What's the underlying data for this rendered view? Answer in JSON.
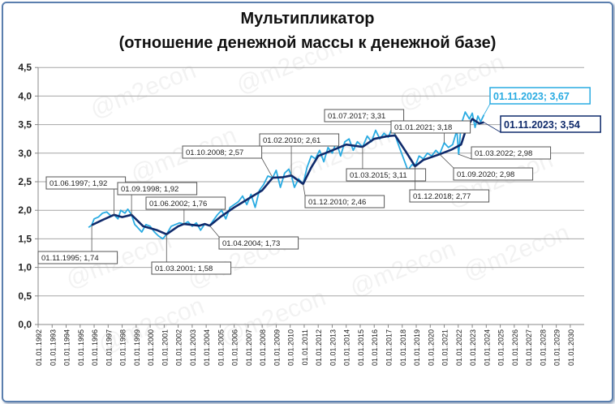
{
  "chart_data": {
    "type": "line",
    "title": "Мультипликатор",
    "subtitle": "(отношение денежной массы к денежной базе)",
    "watermark": "@m2econ",
    "ylim": [
      0,
      4.5
    ],
    "y_ticks": [
      "0,0",
      "0,5",
      "1,0",
      "1,5",
      "2,0",
      "2,5",
      "3,0",
      "3,5",
      "4,0",
      "4,5"
    ],
    "y_tick_values": [
      0,
      0.5,
      1,
      1.5,
      2,
      2.5,
      3,
      3.5,
      4,
      4.5
    ],
    "x_ticks": [
      "01.01.1992",
      "01.01.1993",
      "01.01.1994",
      "01.01.1995",
      "01.01.1996",
      "01.01.1997",
      "01.01.1998",
      "01.01.1999",
      "01.01.2000",
      "01.01.2001",
      "01.01.2002",
      "01.01.2003",
      "01.01.2004",
      "01.01.2005",
      "01.01.2006",
      "01.01.2007",
      "01.01.2008",
      "01.01.2009",
      "01.01.2010",
      "01.01.2011",
      "01.01.2012",
      "01.01.2013",
      "01.01.2014",
      "01.01.2015",
      "01.01.2016",
      "01.01.2017",
      "01.01.2018",
      "01.01.2019",
      "01.01.2020",
      "01.01.2021",
      "01.01.2022",
      "01.01.2023",
      "01.01.2024",
      "01.01.2025",
      "01.01.2026",
      "01.01.2027",
      "01.01.2028",
      "01.01.2029",
      "01.01.2030"
    ],
    "xlim_years": [
      1992,
      2031
    ],
    "grid": "horizontal",
    "colors": {
      "monthly": "#29abe2",
      "smoothed": "#0f2a6b",
      "grid": "#a6a6a6"
    },
    "series": [
      {
        "key": "monthly",
        "x": [
          1995.6,
          1995.83,
          1996.0,
          1996.3,
          1996.6,
          1996.9,
          1997.2,
          1997.42,
          1997.7,
          1997.9,
          1998.2,
          1998.4,
          1998.67,
          1998.9,
          1999.1,
          1999.4,
          1999.7,
          2000.0,
          2000.3,
          2000.6,
          2000.9,
          2001.17,
          2001.5,
          2001.8,
          2002.1,
          2002.42,
          2002.7,
          2003.0,
          2003.3,
          2003.6,
          2003.9,
          2004.25,
          2004.5,
          2004.8,
          2005.1,
          2005.4,
          2005.7,
          2006.0,
          2006.3,
          2006.6,
          2006.9,
          2007.2,
          2007.5,
          2007.8,
          2008.1,
          2008.4,
          2008.75,
          2009.0,
          2009.3,
          2009.6,
          2009.9,
          2010.08,
          2010.3,
          2010.6,
          2010.92,
          2011.2,
          2011.5,
          2011.8,
          2012.1,
          2012.4,
          2012.7,
          2013.0,
          2013.3,
          2013.6,
          2013.9,
          2014.2,
          2014.5,
          2014.8,
          2015.17,
          2015.5,
          2015.8,
          2016.1,
          2016.4,
          2016.7,
          2017.0,
          2017.3,
          2017.5,
          2017.8,
          2018.1,
          2018.4,
          2018.7,
          2018.92,
          2019.2,
          2019.5,
          2019.8,
          2020.1,
          2020.4,
          2020.67,
          2021.0,
          2021.3,
          2021.6,
          2021.9,
          2022.03,
          2022.2,
          2022.5,
          2022.8,
          2023.0,
          2023.2,
          2023.4,
          2023.6,
          2023.83
        ],
        "y": [
          1.7,
          1.74,
          1.85,
          1.88,
          1.95,
          1.97,
          1.9,
          1.92,
          1.85,
          2.0,
          1.95,
          2.02,
          1.92,
          1.75,
          1.7,
          1.62,
          1.75,
          1.72,
          1.62,
          1.55,
          1.5,
          1.58,
          1.72,
          1.75,
          1.78,
          1.76,
          1.8,
          1.72,
          1.78,
          1.65,
          1.76,
          1.73,
          1.82,
          1.92,
          2.0,
          1.85,
          2.05,
          2.1,
          2.15,
          2.25,
          2.1,
          2.28,
          2.05,
          2.35,
          2.45,
          2.6,
          2.57,
          2.7,
          2.4,
          2.65,
          2.72,
          2.61,
          2.4,
          2.55,
          2.46,
          2.75,
          2.95,
          2.9,
          3.05,
          2.85,
          3.1,
          3.0,
          3.2,
          2.95,
          3.2,
          3.25,
          3.05,
          3.2,
          3.11,
          3.3,
          3.2,
          3.4,
          3.25,
          3.35,
          3.28,
          3.45,
          3.31,
          3.1,
          2.9,
          2.7,
          2.8,
          2.77,
          2.95,
          2.9,
          3.0,
          2.95,
          3.05,
          2.98,
          3.18,
          3.1,
          3.15,
          3.4,
          2.98,
          3.5,
          3.72,
          3.6,
          3.7,
          3.45,
          3.65,
          3.55,
          3.67
        ]
      },
      {
        "key": "smoothed",
        "x": [
          1995.83,
          1996.5,
          1997.42,
          1998.0,
          1998.67,
          1999.5,
          2000.5,
          2001.17,
          2002.0,
          2002.42,
          2003.5,
          2003.9,
          2004.25,
          2005.0,
          2006.0,
          2007.0,
          2008.0,
          2008.75,
          2009.5,
          2010.08,
          2010.92,
          2011.5,
          2012.0,
          2013.0,
          2014.0,
          2015.17,
          2016.0,
          2017.0,
          2017.5,
          2018.2,
          2018.92,
          2019.5,
          2020.67,
          2021.5,
          2022.2,
          2022.6,
          2023.0,
          2023.5,
          2023.83
        ],
        "y": [
          1.74,
          1.82,
          1.92,
          1.88,
          1.92,
          1.72,
          1.65,
          1.58,
          1.72,
          1.76,
          1.73,
          1.76,
          1.73,
          1.88,
          2.05,
          2.2,
          2.35,
          2.57,
          2.58,
          2.61,
          2.46,
          2.75,
          2.95,
          3.05,
          3.15,
          3.11,
          3.25,
          3.3,
          3.31,
          3.05,
          2.77,
          2.88,
          2.98,
          3.06,
          3.15,
          3.45,
          3.6,
          3.52,
          3.54
        ]
      }
    ],
    "annotations": [
      {
        "label": "01.11.1995; 1,74",
        "x": 1995.83,
        "y": 1.74,
        "series": "smoothed"
      },
      {
        "label": "01.06.1997; 1,92",
        "x": 1997.42,
        "y": 1.92,
        "series": "smoothed"
      },
      {
        "label": "01.09.1998; 1,92",
        "x": 1998.67,
        "y": 1.92,
        "series": "smoothed"
      },
      {
        "label": "01.06.2002; 1,76",
        "x": 2002.42,
        "y": 1.76,
        "series": "smoothed"
      },
      {
        "label": "01.03.2001; 1,58",
        "x": 2001.17,
        "y": 1.58,
        "series": "smoothed"
      },
      {
        "label": "01.04.2004; 1,73",
        "x": 2004.25,
        "y": 1.73,
        "series": "smoothed"
      },
      {
        "label": "01.10.2008; 2,57",
        "x": 2008.75,
        "y": 2.57,
        "series": "smoothed"
      },
      {
        "label": "01.02.2010; 2,61",
        "x": 2010.08,
        "y": 2.61,
        "series": "smoothed"
      },
      {
        "label": "01.12.2010; 2,46",
        "x": 2010.92,
        "y": 2.46,
        "series": "smoothed"
      },
      {
        "label": "01.07.2017; 3,31",
        "x": 2017.5,
        "y": 3.31,
        "series": "smoothed"
      },
      {
        "label": "01.03.2015; 3,11",
        "x": 2015.17,
        "y": 3.11,
        "series": "smoothed"
      },
      {
        "label": "01.01.2021; 3,18",
        "x": 2021.0,
        "y": 3.18,
        "series": "monthly"
      },
      {
        "label": "01.12.2018; 2,77",
        "x": 2018.92,
        "y": 2.77,
        "series": "smoothed"
      },
      {
        "label": "01.03.2022; 2,98",
        "x": 2022.03,
        "y": 2.98,
        "series": "monthly"
      },
      {
        "label": "01.09.2020; 2,98",
        "x": 2020.67,
        "y": 2.98,
        "series": "smoothed"
      },
      {
        "label": "01.11.2023; 3,67",
        "x": 2023.83,
        "y": 3.67,
        "series": "monthly"
      },
      {
        "label": "01.11.2023; 3,54",
        "x": 2023.83,
        "y": 3.54,
        "series": "smoothed"
      }
    ]
  }
}
